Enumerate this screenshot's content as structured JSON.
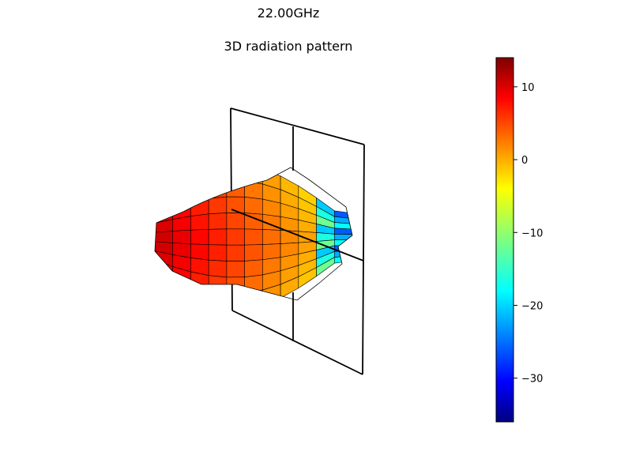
{
  "figure": {
    "suptitle": "22.00GHz",
    "title": "3D radiation pattern"
  },
  "chart_data": {
    "type": "surface3d",
    "title": "3D radiation pattern",
    "subtitle": "22.00GHz",
    "colormap": "jet",
    "colorbar": {
      "min": -36,
      "max": 14,
      "ticks": [
        10,
        0,
        -10,
        -20,
        -30
      ],
      "tick_labels": [
        "10",
        "0",
        "−10",
        "−20",
        "−30"
      ]
    },
    "surface": {
      "main_lobe_direction": "left",
      "main_lobe_peak_value": 14,
      "back_lobe_min_value": -28
    },
    "cutting_plane": {
      "frame_color": "#000000",
      "has_center_cross": true
    }
  }
}
